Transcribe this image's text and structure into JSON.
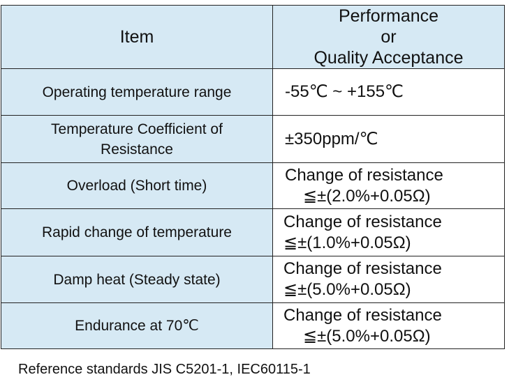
{
  "header": {
    "item_label": "Item",
    "performance_lines": [
      "Performance",
      "or",
      "Quality Acceptance"
    ]
  },
  "rows": [
    {
      "item": [
        "Operating temperature range"
      ],
      "value": [
        "-55℃ ~ +155℃"
      ]
    },
    {
      "item": [
        "Temperature Coefficient of",
        "Resistance"
      ],
      "value": [
        "±350ppm/℃"
      ]
    },
    {
      "item": [
        "Overload (Short time)"
      ],
      "value": [
        "Change of resistance",
        "≦±(2.0%+0.05Ω)"
      ]
    },
    {
      "item": [
        "Rapid change of temperature"
      ],
      "value": [
        "Change of resistance",
        "≦±(1.0%+0.05Ω)"
      ]
    },
    {
      "item": [
        "Damp heat (Steady state)"
      ],
      "value": [
        "Change of resistance",
        "≦±(5.0%+0.05Ω)"
      ]
    },
    {
      "item": [
        "Endurance at 70℃"
      ],
      "value": [
        "Change of resistance",
        "≦±(5.0%+0.05Ω)"
      ]
    }
  ],
  "footnote": "Reference standards JIS C5201-1, IEC60115-1",
  "colors": {
    "item_column_bg": "#d6e9f4",
    "border": "#222222"
  }
}
